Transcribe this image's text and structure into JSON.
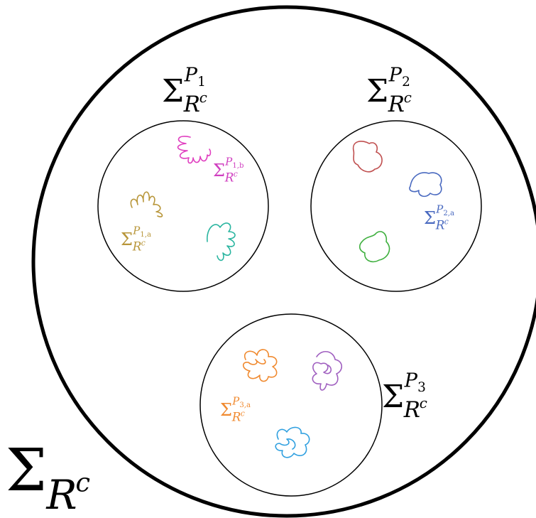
{
  "labels": [
    {
      "symbol": "Σ",
      "sub": "R",
      "sub_sup": "c"
    },
    {
      "symbol": "Σ",
      "sub": "R",
      "sub_sup": "c",
      "sup": "P",
      "sup_sub": "1"
    },
    {
      "symbol": "Σ",
      "sub": "R",
      "sub_sup": "c",
      "sup": "P",
      "sup_sub": "2"
    },
    {
      "symbol": "Σ",
      "sub": "R",
      "sub_sup": "c",
      "sup": "P",
      "sup_sub": "3"
    },
    {
      "symbol": "Σ",
      "sub": "R",
      "sub_sup": "c",
      "sup": "P",
      "sup_sub": "1,b"
    },
    {
      "symbol": "Σ",
      "sub": "R",
      "sub_sup": "c",
      "sup": "P",
      "sup_sub": "1,a"
    },
    {
      "symbol": "Σ",
      "sub": "R",
      "sub_sup": "c",
      "sup": "P",
      "sup_sub": "2,a"
    },
    {
      "symbol": "Σ",
      "sub": "R",
      "sub_sup": "c",
      "sup": "P",
      "sup_sub": "3,a"
    }
  ]
}
